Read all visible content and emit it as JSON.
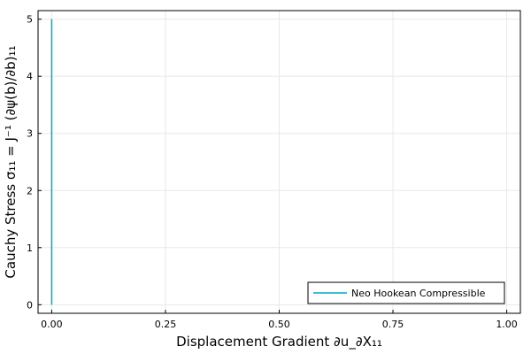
{
  "chart_data": {
    "type": "line",
    "xlabel": "Displacement Gradient ∂u_∂X₁₁",
    "ylabel": "Cauchy Stress σ₁₁ = J⁻¹ (∂ψ(b)/∂b)₁₁",
    "xlim": [
      -0.03,
      1.03
    ],
    "ylim": [
      -0.15,
      5.15
    ],
    "xticks": [
      0.0,
      0.25,
      0.5,
      0.75,
      1.0
    ],
    "xtick_labels": [
      "0.00",
      "0.25",
      "0.50",
      "0.75",
      "1.00"
    ],
    "yticks": [
      0,
      1,
      2,
      3,
      4,
      5
    ],
    "ytick_labels": [
      "0",
      "1",
      "2",
      "3",
      "4",
      "5"
    ],
    "grid": true,
    "legend_position": "bottom-right",
    "series": [
      {
        "name": "Neo Hookean Compressible",
        "color": "#00a9c2",
        "x": [
          0.0,
          0.0
        ],
        "y": [
          0.0,
          5.0
        ]
      }
    ]
  }
}
